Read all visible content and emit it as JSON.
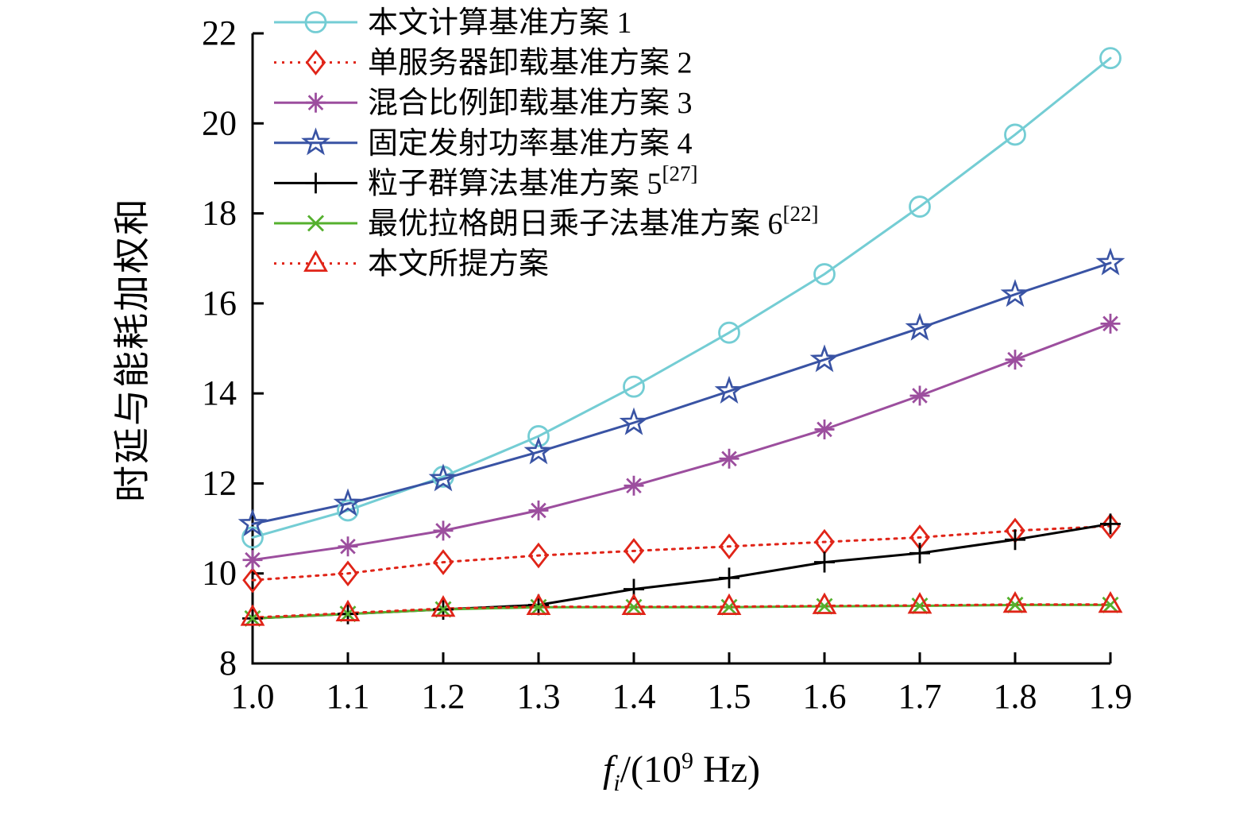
{
  "chart_data": {
    "type": "line",
    "title": "",
    "x": [
      1.0,
      1.1,
      1.2,
      1.3,
      1.4,
      1.5,
      1.6,
      1.7,
      1.8,
      1.9
    ],
    "xtick_labels": [
      "1.0",
      "1.1",
      "1.2",
      "1.3",
      "1.4",
      "1.5",
      "1.6",
      "1.7",
      "1.8",
      "1.9"
    ],
    "xlim": [
      1.0,
      1.9
    ],
    "ylim": [
      8,
      22
    ],
    "yticks": [
      8,
      10,
      12,
      14,
      16,
      18,
      20,
      22
    ],
    "grid": false,
    "legend_position": "top-left-inside",
    "ylabel": "时延与能耗加权和",
    "xlabel": {
      "f": "f",
      "sub": "i",
      "mid": "/(10",
      "sup": "9",
      "tail": " Hz)"
    },
    "series": [
      {
        "name": "本文计算基准方案 1",
        "sup": "",
        "color": "#74cdd4",
        "marker": "circle",
        "dash": "solid",
        "values": [
          10.8,
          11.4,
          12.15,
          13.05,
          14.15,
          15.35,
          16.65,
          18.15,
          19.75,
          21.45
        ]
      },
      {
        "name": "单服务器卸载基准方案 2",
        "sup": "",
        "color": "#e02418",
        "marker": "diamond",
        "dash": "dotted",
        "values": [
          9.85,
          10.0,
          10.25,
          10.4,
          10.5,
          10.6,
          10.7,
          10.8,
          10.95,
          11.05
        ]
      },
      {
        "name": "混合比例卸载基准方案 3",
        "sup": "",
        "color": "#9c4e9e",
        "marker": "asterisk",
        "dash": "solid",
        "values": [
          10.3,
          10.6,
          10.95,
          11.4,
          11.95,
          12.55,
          13.2,
          13.95,
          14.75,
          15.55
        ]
      },
      {
        "name": "固定发射功率基准方案 4",
        "sup": "",
        "color": "#3953a4",
        "marker": "star",
        "dash": "solid",
        "values": [
          11.1,
          11.55,
          12.1,
          12.7,
          13.35,
          14.05,
          14.75,
          15.45,
          16.2,
          16.9
        ]
      },
      {
        "name": "粒子群算法基准方案 5",
        "sup": "[27]",
        "color": "#000000",
        "marker": "plus",
        "dash": "solid",
        "values": [
          9.0,
          9.1,
          9.2,
          9.3,
          9.65,
          9.9,
          10.25,
          10.45,
          10.75,
          11.1
        ]
      },
      {
        "name": "最优拉格朗日乘子法基准方案 6",
        "sup": "[22]",
        "color": "#55b02e",
        "marker": "x",
        "dash": "solid",
        "values": [
          9.0,
          9.1,
          9.2,
          9.25,
          9.25,
          9.25,
          9.27,
          9.28,
          9.3,
          9.3
        ]
      },
      {
        "name": "本文所提方案",
        "sup": "",
        "color": "#e02418",
        "marker": "triangle",
        "dash": "dotted",
        "values": [
          9.02,
          9.12,
          9.22,
          9.26,
          9.26,
          9.26,
          9.28,
          9.29,
          9.31,
          9.31
        ]
      }
    ]
  }
}
